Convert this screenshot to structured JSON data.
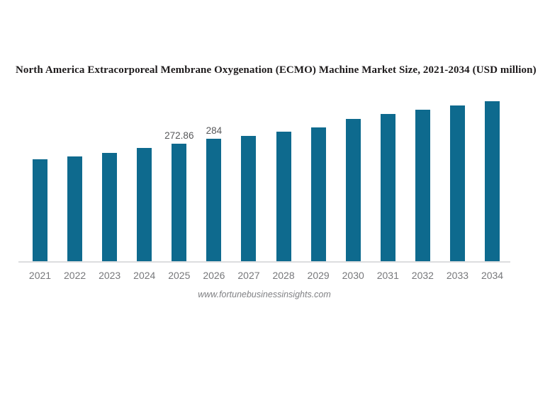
{
  "header": {
    "title": "North America Extracorporeal Membrane Oxygenation (ECMO) Machine Market Size, 2021-2034 (USD million)"
  },
  "footer": {
    "source_text": "www.fortunebusinessinsights.com"
  },
  "colors": {
    "bar": "#0e6a8e",
    "title_text": "#1d1a1b",
    "axis_line": "#dcdddf",
    "tick_label": "#77787b",
    "data_label": "#58595b",
    "footer_text": "#808184",
    "background": "#ffffff"
  },
  "chart_data": {
    "type": "bar",
    "title": "North America Extracorporeal Membrane Oxygenation (ECMO) Machine Market Size, 2021-2034 (USD million)",
    "xlabel": "",
    "ylabel": "",
    "unit": "USD million",
    "categories": [
      "2021",
      "2022",
      "2023",
      "2024",
      "2025",
      "2026",
      "2027",
      "2028",
      "2029",
      "2030",
      "2031",
      "2032",
      "2033",
      "2034"
    ],
    "values": [
      236,
      244,
      252,
      263,
      272.86,
      284,
      291,
      300,
      310,
      331,
      342,
      352,
      362,
      372
    ],
    "data_labels": {
      "2025": "272.86",
      "2026": "284"
    },
    "ylim": [
      0,
      383
    ],
    "grid": false,
    "legend": false,
    "bar_color": "#0e6a8e"
  }
}
